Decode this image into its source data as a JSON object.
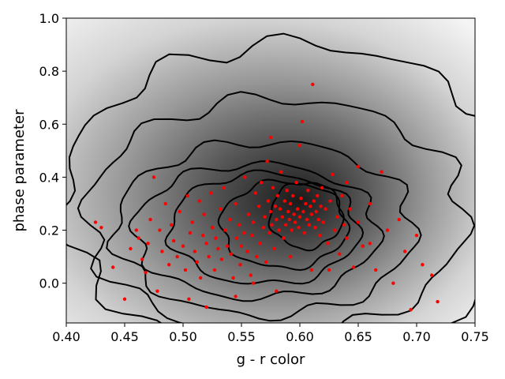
{
  "chart_data": {
    "type": "scatter",
    "xlabel": "g - r color",
    "ylabel": "phase parameter",
    "xlim": [
      0.4,
      0.75
    ],
    "ylim": [
      -0.15,
      1.0
    ],
    "xticks": [
      "0.40",
      "0.45",
      "0.50",
      "0.55",
      "0.60",
      "0.65",
      "0.70",
      "0.75"
    ],
    "yticks": [
      "0.0",
      "0.2",
      "0.4",
      "0.6",
      "0.8",
      "1.0"
    ],
    "grid": false,
    "background": "grayscale density histogram with black contour lines",
    "point_color": "#ff0000",
    "contour_color": "#000000",
    "density_peak": [
      0.6,
      0.25
    ],
    "points": [
      [
        0.425,
        0.23
      ],
      [
        0.43,
        0.21
      ],
      [
        0.44,
        0.06
      ],
      [
        0.45,
        -0.06
      ],
      [
        0.455,
        0.13
      ],
      [
        0.46,
        0.2
      ],
      [
        0.462,
        0.17
      ],
      [
        0.465,
        0.09
      ],
      [
        0.468,
        0.04
      ],
      [
        0.47,
        0.15
      ],
      [
        0.472,
        0.24
      ],
      [
        0.475,
        0.4
      ],
      [
        0.478,
        -0.03
      ],
      [
        0.48,
        0.2
      ],
      [
        0.482,
        0.12
      ],
      [
        0.485,
        0.3
      ],
      [
        0.488,
        0.07
      ],
      [
        0.49,
        0.22
      ],
      [
        0.492,
        0.16
      ],
      [
        0.495,
        0.1
      ],
      [
        0.497,
        0.27
      ],
      [
        0.5,
        0.14
      ],
      [
        0.502,
        0.05
      ],
      [
        0.504,
        0.33
      ],
      [
        0.506,
        0.19
      ],
      [
        0.508,
        0.23
      ],
      [
        0.51,
        0.12
      ],
      [
        0.512,
        0.08
      ],
      [
        0.514,
        0.31
      ],
      [
        0.515,
        0.02
      ],
      [
        0.517,
        0.18
      ],
      [
        0.518,
        0.26
      ],
      [
        0.52,
        0.15
      ],
      [
        0.522,
        0.1
      ],
      [
        0.524,
        0.34
      ],
      [
        0.525,
        0.21
      ],
      [
        0.527,
        0.05
      ],
      [
        0.528,
        0.17
      ],
      [
        0.53,
        0.13
      ],
      [
        0.532,
        0.28
      ],
      [
        0.533,
        0.09
      ],
      [
        0.535,
        0.36
      ],
      [
        0.536,
        0.2
      ],
      [
        0.538,
        0.14
      ],
      [
        0.54,
        0.24
      ],
      [
        0.541,
        0.11
      ],
      [
        0.543,
        0.02
      ],
      [
        0.545,
        0.3
      ],
      [
        0.546,
        0.17
      ],
      [
        0.548,
        0.22
      ],
      [
        0.549,
        0.07
      ],
      [
        0.55,
        0.14
      ],
      [
        0.552,
        0.19
      ],
      [
        0.553,
        0.4
      ],
      [
        0.555,
        0.12
      ],
      [
        0.556,
        0.26
      ],
      [
        0.558,
        0.03
      ],
      [
        0.559,
        0.18
      ],
      [
        0.56,
        0.23
      ],
      [
        0.562,
        0.34
      ],
      [
        0.563,
        0.1
      ],
      [
        0.565,
        0.29
      ],
      [
        0.566,
        0.15
      ],
      [
        0.567,
        0.38
      ],
      [
        0.569,
        0.21
      ],
      [
        0.57,
        0.25
      ],
      [
        0.571,
        0.08
      ],
      [
        0.573,
        0.31
      ],
      [
        0.574,
        0.19
      ],
      [
        0.575,
        0.27
      ],
      [
        0.576,
        0.22
      ],
      [
        0.577,
        0.36
      ],
      [
        0.578,
        0.13
      ],
      [
        0.579,
        0.29
      ],
      [
        0.58,
        0.24
      ],
      [
        0.581,
        0.33
      ],
      [
        0.582,
        0.2
      ],
      [
        0.583,
        0.28
      ],
      [
        0.584,
        0.42
      ],
      [
        0.585,
        0.25
      ],
      [
        0.586,
        0.17
      ],
      [
        0.587,
        0.31
      ],
      [
        0.588,
        0.22
      ],
      [
        0.589,
        0.35
      ],
      [
        0.59,
        0.27
      ],
      [
        0.591,
        0.24
      ],
      [
        0.592,
        0.3
      ],
      [
        0.593,
        0.2
      ],
      [
        0.594,
        0.33
      ],
      [
        0.595,
        0.26
      ],
      [
        0.596,
        0.23
      ],
      [
        0.597,
        0.38
      ],
      [
        0.598,
        0.28
      ],
      [
        0.599,
        0.21
      ],
      [
        0.6,
        0.25
      ],
      [
        0.601,
        0.32
      ],
      [
        0.602,
        0.61
      ],
      [
        0.603,
        0.27
      ],
      [
        0.604,
        0.19
      ],
      [
        0.605,
        0.3
      ],
      [
        0.606,
        0.24
      ],
      [
        0.607,
        0.35
      ],
      [
        0.608,
        0.22
      ],
      [
        0.609,
        0.29
      ],
      [
        0.61,
        0.26
      ],
      [
        0.611,
        0.75
      ],
      [
        0.612,
        0.31
      ],
      [
        0.613,
        0.21
      ],
      [
        0.614,
        0.27
      ],
      [
        0.615,
        0.33
      ],
      [
        0.616,
        0.24
      ],
      [
        0.617,
        0.18
      ],
      [
        0.618,
        0.29
      ],
      [
        0.619,
        0.36
      ],
      [
        0.62,
        0.23
      ],
      [
        0.622,
        0.28
      ],
      [
        0.624,
        0.15
      ],
      [
        0.626,
        0.31
      ],
      [
        0.628,
        0.41
      ],
      [
        0.63,
        0.2
      ],
      [
        0.632,
        0.25
      ],
      [
        0.634,
        0.11
      ],
      [
        0.636,
        0.33
      ],
      [
        0.638,
        0.22
      ],
      [
        0.64,
        0.17
      ],
      [
        0.643,
        0.28
      ],
      [
        0.646,
        0.06
      ],
      [
        0.65,
        0.23
      ],
      [
        0.654,
        0.14
      ],
      [
        0.66,
        0.3
      ],
      [
        0.665,
        0.05
      ],
      [
        0.67,
        0.42
      ],
      [
        0.675,
        0.2
      ],
      [
        0.68,
        0.0
      ],
      [
        0.685,
        0.24
      ],
      [
        0.69,
        0.12
      ],
      [
        0.695,
        -0.1
      ],
      [
        0.7,
        0.18
      ],
      [
        0.705,
        0.07
      ],
      [
        0.713,
        0.03
      ],
      [
        0.718,
        -0.07
      ],
      [
        0.625,
        0.05
      ],
      [
        0.572,
        0.46
      ],
      [
        0.592,
        0.1
      ],
      [
        0.56,
        0.0
      ],
      [
        0.545,
        -0.05
      ],
      [
        0.52,
        -0.09
      ],
      [
        0.505,
        -0.06
      ],
      [
        0.64,
        0.38
      ],
      [
        0.65,
        0.44
      ],
      [
        0.58,
        -0.03
      ],
      [
        0.61,
        0.05
      ],
      [
        0.66,
        0.15
      ],
      [
        0.6,
        0.52
      ],
      [
        0.575,
        0.55
      ]
    ]
  }
}
